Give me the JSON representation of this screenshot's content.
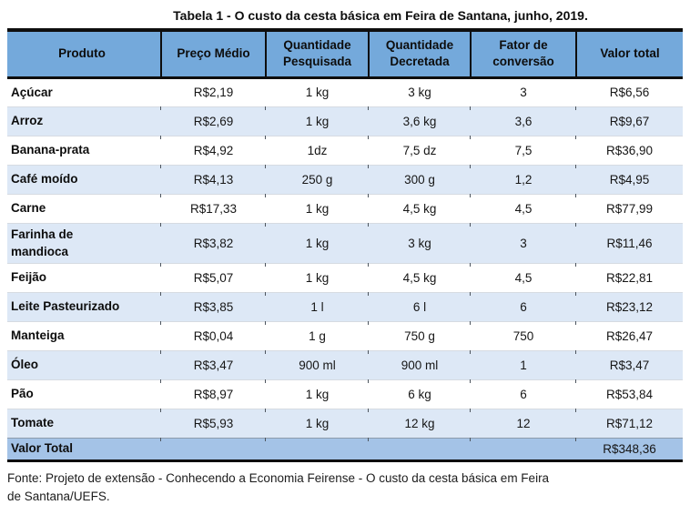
{
  "title": "Tabela 1 - O custo da cesta básica em Feira de Santana, junho, 2019.",
  "table": {
    "headers": [
      "Produto",
      "Preço Médio",
      "Quantidade Pesquisada",
      "Quantidade Decretada",
      "Fator de conversão",
      "Valor total"
    ],
    "rows": [
      {
        "produto": "Açúcar",
        "preco": "R$2,19",
        "qp": "1 kg",
        "qd": "3 kg",
        "fator": "3",
        "valor": "R$6,56"
      },
      {
        "produto": "Arroz",
        "preco": "R$2,69",
        "qp": "1 kg",
        "qd": "3,6 kg",
        "fator": "3,6",
        "valor": "R$9,67"
      },
      {
        "produto": "Banana-prata",
        "preco": "R$4,92",
        "qp": "1dz",
        "qd": "7,5 dz",
        "fator": "7,5",
        "valor": "R$36,90"
      },
      {
        "produto": "Café moído",
        "preco": "R$4,13",
        "qp": "250 g",
        "qd": "300 g",
        "fator": "1,2",
        "valor": "R$4,95"
      },
      {
        "produto": "Carne",
        "preco": "R$17,33",
        "qp": "1 kg",
        "qd": "4,5 kg",
        "fator": "4,5",
        "valor": "R$77,99"
      },
      {
        "produto": "Farinha de\nmandioca",
        "preco": "R$3,82",
        "qp": "1 kg",
        "qd": "3 kg",
        "fator": "3",
        "valor": "R$11,46"
      },
      {
        "produto": "Feijão",
        "preco": "R$5,07",
        "qp": "1 kg",
        "qd": "4,5 kg",
        "fator": "4,5",
        "valor": "R$22,81"
      },
      {
        "produto": "Leite Pasteurizado",
        "preco": "R$3,85",
        "qp": "1 l",
        "qd": "6 l",
        "fator": "6",
        "valor": "R$23,12"
      },
      {
        "produto": "Manteiga",
        "preco": "R$0,04",
        "qp": "1 g",
        "qd": "750 g",
        "fator": "750",
        "valor": "R$26,47"
      },
      {
        "produto": "Óleo",
        "preco": "R$3,47",
        "qp": "900 ml",
        "qd": "900 ml",
        "fator": "1",
        "valor": "R$3,47"
      },
      {
        "produto": "Pão",
        "preco": "R$8,97",
        "qp": "1 kg",
        "qd": "6 kg",
        "fator": "6",
        "valor": "R$53,84"
      },
      {
        "produto": "Tomate",
        "preco": "R$5,93",
        "qp": "1 kg",
        "qd": "12 kg",
        "fator": "12",
        "valor": "R$71,12"
      }
    ],
    "total_label": "Valor Total",
    "total_value": "R$348,36"
  },
  "footer": {
    "line1": "Fonte: Projeto de extensão - Conhecendo a Economia Feirense - O custo da cesta básica em Feira",
    "line2": "de Santana/UEFS."
  },
  "colors": {
    "header_bg": "#74A9DB",
    "alt_row_bg": "#DDE8F6",
    "total_row_bg": "#A4C3E7",
    "border": "#0E0E0E"
  }
}
